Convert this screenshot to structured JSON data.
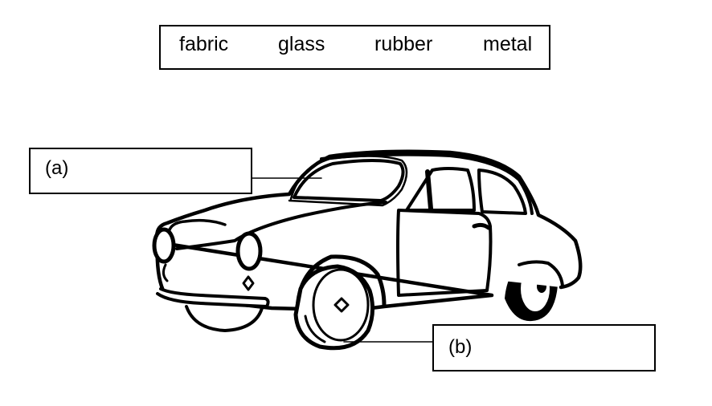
{
  "word_bank": {
    "words": [
      "fabric",
      "glass",
      "rubber",
      "metal"
    ]
  },
  "labels": {
    "a": "(a)",
    "b": "(b)"
  },
  "colors": {
    "ink": "#000000",
    "background": "#ffffff"
  }
}
